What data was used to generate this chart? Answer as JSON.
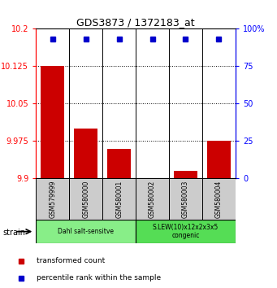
{
  "title": "GDS3873 / 1372183_at",
  "samples": [
    "GSM579999",
    "GSM580000",
    "GSM580001",
    "GSM580002",
    "GSM580003",
    "GSM580004"
  ],
  "transformed_counts": [
    10.125,
    10.0,
    9.96,
    9.895,
    9.915,
    9.975
  ],
  "percentile_ranks": [
    93,
    93,
    93,
    93,
    93,
    93
  ],
  "ylim_left": [
    9.9,
    10.2
  ],
  "ylim_right": [
    0,
    100
  ],
  "yticks_left": [
    9.9,
    9.975,
    10.05,
    10.125,
    10.2
  ],
  "yticks_right": [
    0,
    25,
    50,
    75,
    100
  ],
  "ytick_labels_left": [
    "9.9",
    "9.975",
    "10.05",
    "10.125",
    "10.2"
  ],
  "ytick_labels_right": [
    "0",
    "25",
    "50",
    "75",
    "100%"
  ],
  "bar_color": "#cc0000",
  "dot_color": "#0000cc",
  "bar_bottom": 9.9,
  "groups": [
    {
      "label": "Dahl salt-sensitve",
      "start": 0,
      "end": 3,
      "color": "#88ee88"
    },
    {
      "label": "S.LEW(10)x12x2x3x5\ncongenic",
      "start": 3,
      "end": 6,
      "color": "#55dd55"
    }
  ],
  "strain_label": "strain",
  "legend_items": [
    {
      "color": "#cc0000",
      "label": "transformed count"
    },
    {
      "color": "#0000cc",
      "label": "percentile rank within the sample"
    }
  ],
  "grid_yticks": [
    9.975,
    10.05,
    10.125
  ],
  "sample_box_color": "#cccccc",
  "left_axis_color": "red",
  "right_axis_color": "blue",
  "background_color": "#ffffff"
}
